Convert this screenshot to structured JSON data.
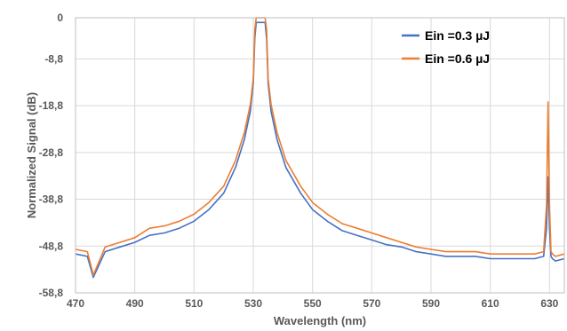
{
  "chart_data": {
    "type": "line",
    "xlabel": "Wavelength (nm)",
    "ylabel": "Normalized Signal (dB)",
    "xlim": [
      470,
      635
    ],
    "ylim": [
      -58.8,
      0
    ],
    "x_ticks": [
      "470",
      "490",
      "510",
      "530",
      "550",
      "570",
      "590",
      "610",
      "630"
    ],
    "y_ticks": [
      "0",
      "-8,8",
      "-18,8",
      "-28,8",
      "-38,8",
      "-48,8",
      "-58,8"
    ],
    "grid": true,
    "legend_position": "top-right",
    "x": [
      470,
      474,
      476,
      480,
      485,
      490,
      495,
      500,
      505,
      510,
      515,
      520,
      524,
      527,
      529,
      530,
      530.5,
      531,
      534,
      534.5,
      535,
      536,
      538,
      541,
      546,
      550,
      555,
      560,
      565,
      570,
      575,
      580,
      585,
      590,
      595,
      600,
      605,
      610,
      615,
      620,
      625,
      628,
      629,
      629.5,
      630,
      630.5,
      631,
      632,
      635
    ],
    "series": [
      {
        "name": "Ein =0.3 µJ",
        "color": "#4472C4",
        "values": [
          -50.5,
          -51.0,
          -55.5,
          -50.0,
          -49.0,
          -48.0,
          -46.5,
          -46.0,
          -45.0,
          -43.5,
          -41.0,
          -37.5,
          -32.0,
          -26.0,
          -20.0,
          -14.0,
          -4.5,
          -1.0,
          -1.0,
          -4.5,
          -14.0,
          -20.0,
          -26.0,
          -32.0,
          -37.5,
          -41.0,
          -43.5,
          -45.5,
          -46.5,
          -47.5,
          -48.5,
          -49.0,
          -50.0,
          -50.5,
          -51.0,
          -51.0,
          -51.0,
          -51.5,
          -51.5,
          -51.5,
          -51.5,
          -51.0,
          -45.0,
          -34.0,
          -45.0,
          -51.0,
          -51.5,
          -52.0,
          -51.5
        ]
      },
      {
        "name": "Ein =0.6 µJ",
        "color": "#ED7D31",
        "values": [
          -49.5,
          -50.0,
          -55.0,
          -49.0,
          -48.0,
          -47.0,
          -45.0,
          -44.5,
          -43.5,
          -42.0,
          -39.5,
          -36.0,
          -30.5,
          -24.5,
          -18.5,
          -13.0,
          -2.5,
          0.2,
          0.2,
          -2.5,
          -13.0,
          -18.5,
          -24.5,
          -30.5,
          -36.0,
          -39.5,
          -42.0,
          -44.0,
          -45.0,
          -46.0,
          -47.0,
          -48.0,
          -49.0,
          -49.5,
          -50.0,
          -50.0,
          -50.0,
          -50.5,
          -50.5,
          -50.5,
          -50.5,
          -50.0,
          -40.0,
          -18.0,
          -40.0,
          -50.0,
          -50.5,
          -51.0,
          -50.5
        ]
      }
    ]
  }
}
